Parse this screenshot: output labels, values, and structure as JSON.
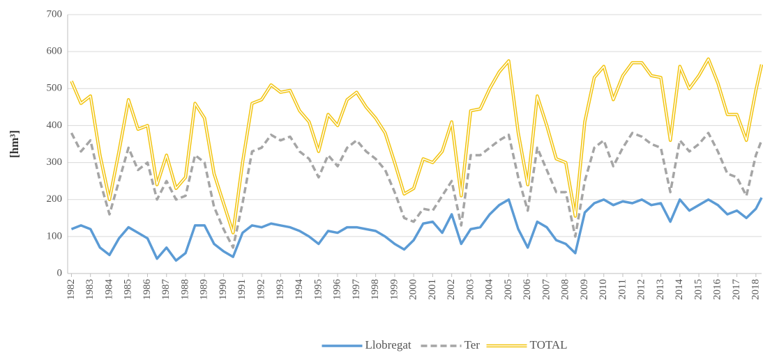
{
  "chart_data": {
    "type": "line",
    "y_label": "[hm³]",
    "x": [
      1982,
      1982.5,
      1983,
      1983.5,
      1984,
      1984.5,
      1985,
      1985.5,
      1986,
      1986.5,
      1987,
      1987.5,
      1988,
      1988.5,
      1989,
      1989.5,
      1990,
      1990.5,
      1991,
      1991.5,
      1992,
      1992.5,
      1993,
      1993.5,
      1994,
      1994.5,
      1995,
      1995.5,
      1996,
      1996.5,
      1997,
      1997.5,
      1998,
      1998.5,
      1999,
      1999.5,
      2000,
      2000.5,
      2001,
      2001.5,
      2002,
      2002.5,
      2003,
      2003.5,
      2004,
      2004.5,
      2005,
      2005.5,
      2006,
      2006.5,
      2007,
      2007.5,
      2008,
      2008.5,
      2009,
      2009.5,
      2010,
      2010.5,
      2011,
      2011.5,
      2012,
      2012.5,
      2013,
      2013.5,
      2014,
      2014.5,
      2015,
      2015.5,
      2016,
      2016.5,
      2017,
      2017.5,
      2018,
      2018.3
    ],
    "series": [
      {
        "name": "Llobregat",
        "color": "#5b9bd5",
        "style": "solid",
        "values": [
          120,
          130,
          120,
          70,
          50,
          95,
          125,
          110,
          95,
          40,
          70,
          35,
          55,
          130,
          130,
          80,
          60,
          45,
          110,
          130,
          125,
          135,
          130,
          125,
          115,
          100,
          80,
          115,
          110,
          125,
          125,
          120,
          115,
          100,
          80,
          65,
          90,
          135,
          140,
          110,
          160,
          80,
          120,
          125,
          160,
          185,
          200,
          120,
          70,
          140,
          125,
          90,
          80,
          55,
          165,
          190,
          200,
          185,
          195,
          190,
          200,
          185,
          190,
          140,
          200,
          170,
          185,
          200,
          185,
          160,
          170,
          150,
          175,
          205
        ]
      },
      {
        "name": "Ter",
        "color": "#a5a5a5",
        "style": "dashed",
        "values": [
          380,
          330,
          360,
          250,
          160,
          250,
          340,
          280,
          300,
          200,
          250,
          200,
          210,
          320,
          300,
          180,
          120,
          70,
          190,
          330,
          340,
          375,
          360,
          370,
          330,
          310,
          260,
          320,
          290,
          340,
          360,
          330,
          310,
          280,
          220,
          150,
          140,
          175,
          170,
          210,
          250,
          130,
          320,
          320,
          340,
          360,
          375,
          260,
          170,
          340,
          280,
          220,
          220,
          100,
          250,
          340,
          360,
          290,
          340,
          380,
          370,
          350,
          340,
          220,
          360,
          330,
          350,
          380,
          330,
          270,
          260,
          210,
          320,
          360
        ]
      },
      {
        "name": "TOTAL",
        "color": "#f2c40f",
        "style": "double",
        "values": [
          520,
          460,
          480,
          320,
          200,
          330,
          470,
          390,
          400,
          240,
          320,
          230,
          260,
          460,
          420,
          270,
          190,
          110,
          300,
          460,
          470,
          510,
          490,
          495,
          440,
          410,
          330,
          430,
          400,
          470,
          490,
          450,
          420,
          380,
          300,
          215,
          230,
          310,
          300,
          330,
          410,
          210,
          440,
          445,
          500,
          545,
          575,
          380,
          240,
          480,
          400,
          310,
          300,
          155,
          410,
          530,
          560,
          470,
          535,
          570,
          570,
          535,
          530,
          360,
          560,
          500,
          535,
          580,
          515,
          430,
          430,
          360,
          495,
          565
        ]
      }
    ],
    "xlim": [
      1981.8,
      2018.3
    ],
    "xticks": [
      1982,
      1983,
      1984,
      1985,
      1986,
      1987,
      1988,
      1989,
      1990,
      1991,
      1992,
      1993,
      1994,
      1995,
      1996,
      1997,
      1998,
      1999,
      2000,
      2001,
      2002,
      2003,
      2004,
      2005,
      2006,
      2007,
      2008,
      2009,
      2010,
      2011,
      2012,
      2013,
      2014,
      2015,
      2016,
      2017,
      2018
    ],
    "ylim": [
      0,
      700
    ],
    "yticks": [
      0,
      100,
      200,
      300,
      400,
      500,
      600,
      700
    ],
    "grid": true,
    "legend": "bottom"
  }
}
